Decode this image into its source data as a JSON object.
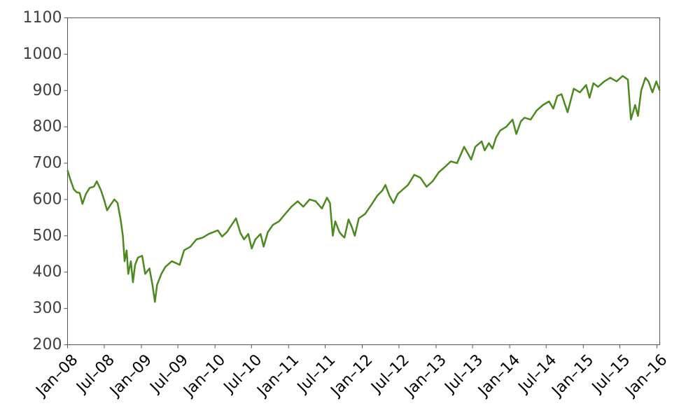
{
  "chart_data": {
    "type": "line",
    "title": "",
    "xlabel": "",
    "ylabel": "",
    "xlim": [
      "2008-01-01",
      "2016-01-15"
    ],
    "ylim": [
      200,
      1100
    ],
    "grid": false,
    "legend": "none",
    "line_color": "#4b8a1e",
    "y_ticks": [
      200,
      300,
      400,
      500,
      600,
      700,
      800,
      900,
      1000,
      1100
    ],
    "x_ticks": [
      {
        "date": "2008-01-01",
        "label": "Jan–08"
      },
      {
        "date": "2008-07-01",
        "label": "Jul–08"
      },
      {
        "date": "2009-01-01",
        "label": "Jan–09"
      },
      {
        "date": "2009-07-01",
        "label": "Jul–09"
      },
      {
        "date": "2010-01-01",
        "label": "Jan–10"
      },
      {
        "date": "2010-07-01",
        "label": "Jul–10"
      },
      {
        "date": "2011-01-01",
        "label": "Jan–11"
      },
      {
        "date": "2011-07-01",
        "label": "Jul–11"
      },
      {
        "date": "2012-01-01",
        "label": "Jan–12"
      },
      {
        "date": "2012-07-01",
        "label": "Jul–12"
      },
      {
        "date": "2013-01-01",
        "label": "Jan–13"
      },
      {
        "date": "2013-07-01",
        "label": "Jul–13"
      },
      {
        "date": "2014-01-01",
        "label": "Jan–14"
      },
      {
        "date": "2014-07-01",
        "label": "Jul–14"
      },
      {
        "date": "2015-01-01",
        "label": "Jan–15"
      },
      {
        "date": "2015-07-01",
        "label": "Jul–15"
      },
      {
        "date": "2016-01-01",
        "label": "Jan–16"
      }
    ],
    "series": [
      {
        "points": [
          [
            "2008-01-01",
            680
          ],
          [
            "2008-01-15",
            655
          ],
          [
            "2008-02-01",
            628
          ],
          [
            "2008-02-15",
            620
          ],
          [
            "2008-03-01",
            618
          ],
          [
            "2008-03-15",
            588
          ],
          [
            "2008-04-01",
            615
          ],
          [
            "2008-04-20",
            632
          ],
          [
            "2008-05-10",
            635
          ],
          [
            "2008-05-25",
            650
          ],
          [
            "2008-06-15",
            625
          ],
          [
            "2008-07-01",
            598
          ],
          [
            "2008-07-15",
            570
          ],
          [
            "2008-08-01",
            585
          ],
          [
            "2008-08-20",
            600
          ],
          [
            "2008-09-05",
            590
          ],
          [
            "2008-09-20",
            545
          ],
          [
            "2008-10-01",
            500
          ],
          [
            "2008-10-10",
            430
          ],
          [
            "2008-10-20",
            460
          ],
          [
            "2008-10-28",
            395
          ],
          [
            "2008-11-10",
            430
          ],
          [
            "2008-11-20",
            372
          ],
          [
            "2008-12-01",
            420
          ],
          [
            "2008-12-15",
            440
          ],
          [
            "2009-01-05",
            445
          ],
          [
            "2009-01-20",
            395
          ],
          [
            "2009-02-10",
            410
          ],
          [
            "2009-02-25",
            365
          ],
          [
            "2009-03-09",
            318
          ],
          [
            "2009-03-20",
            365
          ],
          [
            "2009-04-10",
            395
          ],
          [
            "2009-05-01",
            415
          ],
          [
            "2009-06-01",
            430
          ],
          [
            "2009-07-10",
            420
          ],
          [
            "2009-08-01",
            460
          ],
          [
            "2009-09-01",
            470
          ],
          [
            "2009-10-01",
            490
          ],
          [
            "2009-11-01",
            495
          ],
          [
            "2009-12-01",
            505
          ],
          [
            "2010-01-15",
            515
          ],
          [
            "2010-02-05",
            498
          ],
          [
            "2010-03-01",
            510
          ],
          [
            "2010-04-15",
            548
          ],
          [
            "2010-05-07",
            508
          ],
          [
            "2010-05-25",
            490
          ],
          [
            "2010-06-15",
            505
          ],
          [
            "2010-07-02",
            465
          ],
          [
            "2010-07-20",
            490
          ],
          [
            "2010-08-15",
            505
          ],
          [
            "2010-08-30",
            470
          ],
          [
            "2010-09-20",
            510
          ],
          [
            "2010-10-15",
            530
          ],
          [
            "2010-11-15",
            540
          ],
          [
            "2010-12-15",
            560
          ],
          [
            "2011-01-15",
            580
          ],
          [
            "2011-02-15",
            595
          ],
          [
            "2011-03-15",
            580
          ],
          [
            "2011-04-15",
            600
          ],
          [
            "2011-05-15",
            595
          ],
          [
            "2011-06-15",
            575
          ],
          [
            "2011-07-10",
            605
          ],
          [
            "2011-07-25",
            590
          ],
          [
            "2011-08-08",
            500
          ],
          [
            "2011-08-20",
            540
          ],
          [
            "2011-09-10",
            510
          ],
          [
            "2011-09-25",
            500
          ],
          [
            "2011-10-05",
            495
          ],
          [
            "2011-10-25",
            545
          ],
          [
            "2011-11-10",
            525
          ],
          [
            "2011-11-25",
            500
          ],
          [
            "2011-12-15",
            548
          ],
          [
            "2012-01-15",
            560
          ],
          [
            "2012-02-15",
            585
          ],
          [
            "2012-03-15",
            610
          ],
          [
            "2012-04-10",
            625
          ],
          [
            "2012-04-25",
            640
          ],
          [
            "2012-05-15",
            610
          ],
          [
            "2012-06-04",
            590
          ],
          [
            "2012-06-25",
            615
          ],
          [
            "2012-07-15",
            625
          ],
          [
            "2012-08-15",
            640
          ],
          [
            "2012-09-15",
            668
          ],
          [
            "2012-10-15",
            660
          ],
          [
            "2012-11-15",
            635
          ],
          [
            "2012-12-15",
            650
          ],
          [
            "2013-01-15",
            675
          ],
          [
            "2013-02-15",
            690
          ],
          [
            "2013-03-15",
            705
          ],
          [
            "2013-04-15",
            700
          ],
          [
            "2013-05-20",
            745
          ],
          [
            "2013-06-24",
            710
          ],
          [
            "2013-07-15",
            745
          ],
          [
            "2013-08-15",
            760
          ],
          [
            "2013-08-30",
            735
          ],
          [
            "2013-09-20",
            755
          ],
          [
            "2013-10-08",
            740
          ],
          [
            "2013-10-25",
            770
          ],
          [
            "2013-11-15",
            790
          ],
          [
            "2013-12-15",
            800
          ],
          [
            "2014-01-15",
            820
          ],
          [
            "2014-02-03",
            780
          ],
          [
            "2014-02-25",
            815
          ],
          [
            "2014-03-15",
            825
          ],
          [
            "2014-04-15",
            820
          ],
          [
            "2014-05-15",
            845
          ],
          [
            "2014-06-15",
            860
          ],
          [
            "2014-07-15",
            870
          ],
          [
            "2014-08-05",
            850
          ],
          [
            "2014-08-25",
            885
          ],
          [
            "2014-09-15",
            890
          ],
          [
            "2014-10-15",
            840
          ],
          [
            "2014-11-15",
            905
          ],
          [
            "2014-12-15",
            895
          ],
          [
            "2015-01-15",
            915
          ],
          [
            "2015-02-01",
            880
          ],
          [
            "2015-02-20",
            920
          ],
          [
            "2015-03-15",
            910
          ],
          [
            "2015-04-15",
            925
          ],
          [
            "2015-05-15",
            935
          ],
          [
            "2015-06-15",
            925
          ],
          [
            "2015-07-15",
            940
          ],
          [
            "2015-08-10",
            930
          ],
          [
            "2015-08-25",
            820
          ],
          [
            "2015-09-15",
            860
          ],
          [
            "2015-09-29",
            830
          ],
          [
            "2015-10-15",
            900
          ],
          [
            "2015-11-05",
            935
          ],
          [
            "2015-11-20",
            925
          ],
          [
            "2015-12-10",
            895
          ],
          [
            "2015-12-29",
            925
          ],
          [
            "2016-01-15",
            900
          ]
        ]
      }
    ]
  }
}
